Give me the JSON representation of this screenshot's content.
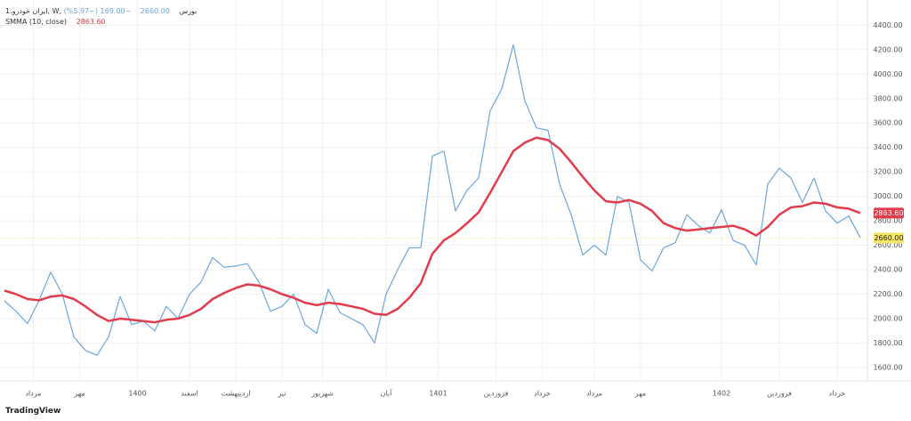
{
  "chart_data": {
    "type": "line",
    "symbol": "ایران خودرو.1, W, بورس",
    "last_price": "2660.00",
    "change": "−169.00 (−5.97%)",
    "indicator": "SMMA (10, close)",
    "indicator_value": "2863.60",
    "brand": "TradingView",
    "x": [
      0,
      2,
      4,
      6,
      8,
      10,
      12,
      14,
      16,
      18,
      20,
      22,
      24,
      26,
      28,
      30,
      32,
      34,
      36,
      38,
      40,
      42,
      44,
      46,
      48,
      50,
      52,
      54,
      56,
      58,
      60,
      62,
      64,
      66,
      68,
      70,
      72,
      74,
      76,
      78,
      80,
      82,
      84,
      86,
      88,
      90,
      92,
      94,
      96,
      98,
      100,
      102,
      104,
      106,
      108,
      110,
      112,
      114,
      116,
      118,
      120,
      122,
      124,
      126,
      128,
      130,
      132,
      134,
      136,
      138,
      140,
      142,
      144,
      146,
      148
    ],
    "series": [
      {
        "name": "ایران خودرو.1",
        "color": "#6aa6de",
        "values": [
          2145,
          2060,
          1960,
          2150,
          2380,
          2200,
          1850,
          1740,
          1700,
          1850,
          2180,
          1950,
          1980,
          1900,
          2100,
          2000,
          2200,
          2300,
          2500,
          2420,
          2430,
          2450,
          2300,
          2060,
          2100,
          2200,
          1950,
          1880,
          2240,
          2050,
          2000,
          1950,
          1800,
          2200,
          2400,
          2580,
          2580,
          3330,
          3370,
          2880,
          3050,
          3150,
          3700,
          3880,
          4240,
          3780,
          3560,
          3540,
          3100,
          2850,
          2520,
          2600,
          2520,
          3000,
          2950,
          2480,
          2390,
          2580,
          2620,
          2850,
          2760,
          2700,
          2890,
          2640,
          2600,
          2440,
          3100,
          3230,
          3150,
          2950,
          3150,
          2880,
          2780,
          2840,
          2660
        ]
      },
      {
        "name": "SMMA (10, close)",
        "color": "#e03c4b",
        "values": [
          2230,
          2200,
          2160,
          2150,
          2180,
          2190,
          2160,
          2100,
          2030,
          1980,
          2000,
          1990,
          1980,
          1970,
          1990,
          2000,
          2030,
          2080,
          2160,
          2210,
          2250,
          2280,
          2270,
          2240,
          2200,
          2170,
          2130,
          2110,
          2130,
          2120,
          2100,
          2080,
          2040,
          2030,
          2080,
          2170,
          2290,
          2530,
          2640,
          2700,
          2780,
          2870,
          3030,
          3200,
          3370,
          3440,
          3480,
          3460,
          3390,
          3280,
          3160,
          3050,
          2960,
          2950,
          2970,
          2940,
          2880,
          2780,
          2740,
          2720,
          2730,
          2740,
          2750,
          2760,
          2730,
          2680,
          2750,
          2850,
          2910,
          2920,
          2950,
          2940,
          2910,
          2900,
          2863.6
        ]
      }
    ],
    "xlim": [
      0,
      148
    ],
    "xticks": [
      {
        "value": 5,
        "label": "مرداد"
      },
      {
        "value": 13,
        "label": "مهر"
      },
      {
        "value": 23,
        "label": "1400"
      },
      {
        "value": 32,
        "label": "اسفند"
      },
      {
        "value": 40,
        "label": "اردیبهشت"
      },
      {
        "value": 48,
        "label": "تیر"
      },
      {
        "value": 55,
        "label": "شهریور"
      },
      {
        "value": 66,
        "label": "آبان"
      },
      {
        "value": 75,
        "label": "1401"
      },
      {
        "value": 85,
        "label": "فروردین"
      },
      {
        "value": 93,
        "label": "خرداد"
      },
      {
        "value": 102,
        "label": "مرداد"
      },
      {
        "value": 110,
        "label": "مهر"
      },
      {
        "value": 124,
        "label": "1402"
      },
      {
        "value": 134,
        "label": "فروردین"
      },
      {
        "value": 144,
        "label": "خرداد"
      }
    ],
    "ylim": [
      1490,
      4570
    ],
    "yticks": [
      {
        "value": 1600,
        "label": "1600.00"
      },
      {
        "value": 1800,
        "label": "1800.00"
      },
      {
        "value": 2000,
        "label": "2000.00"
      },
      {
        "value": 2200,
        "label": "2200.00"
      },
      {
        "value": 2400,
        "label": "2400.00"
      },
      {
        "value": 2600,
        "label": "2600.00"
      },
      {
        "value": 2800,
        "label": "2800.00"
      },
      {
        "value": 3000,
        "label": "3000.00"
      },
      {
        "value": 3200,
        "label": "3200.00"
      },
      {
        "value": 3400,
        "label": "3400.00"
      },
      {
        "value": 3600,
        "label": "3600.00"
      },
      {
        "value": 3800,
        "label": "3800.00"
      },
      {
        "value": 4000,
        "label": "4000.00"
      },
      {
        "value": 4200,
        "label": "4200.00"
      },
      {
        "value": 4400,
        "label": "4400.00"
      }
    ],
    "grid": true
  }
}
